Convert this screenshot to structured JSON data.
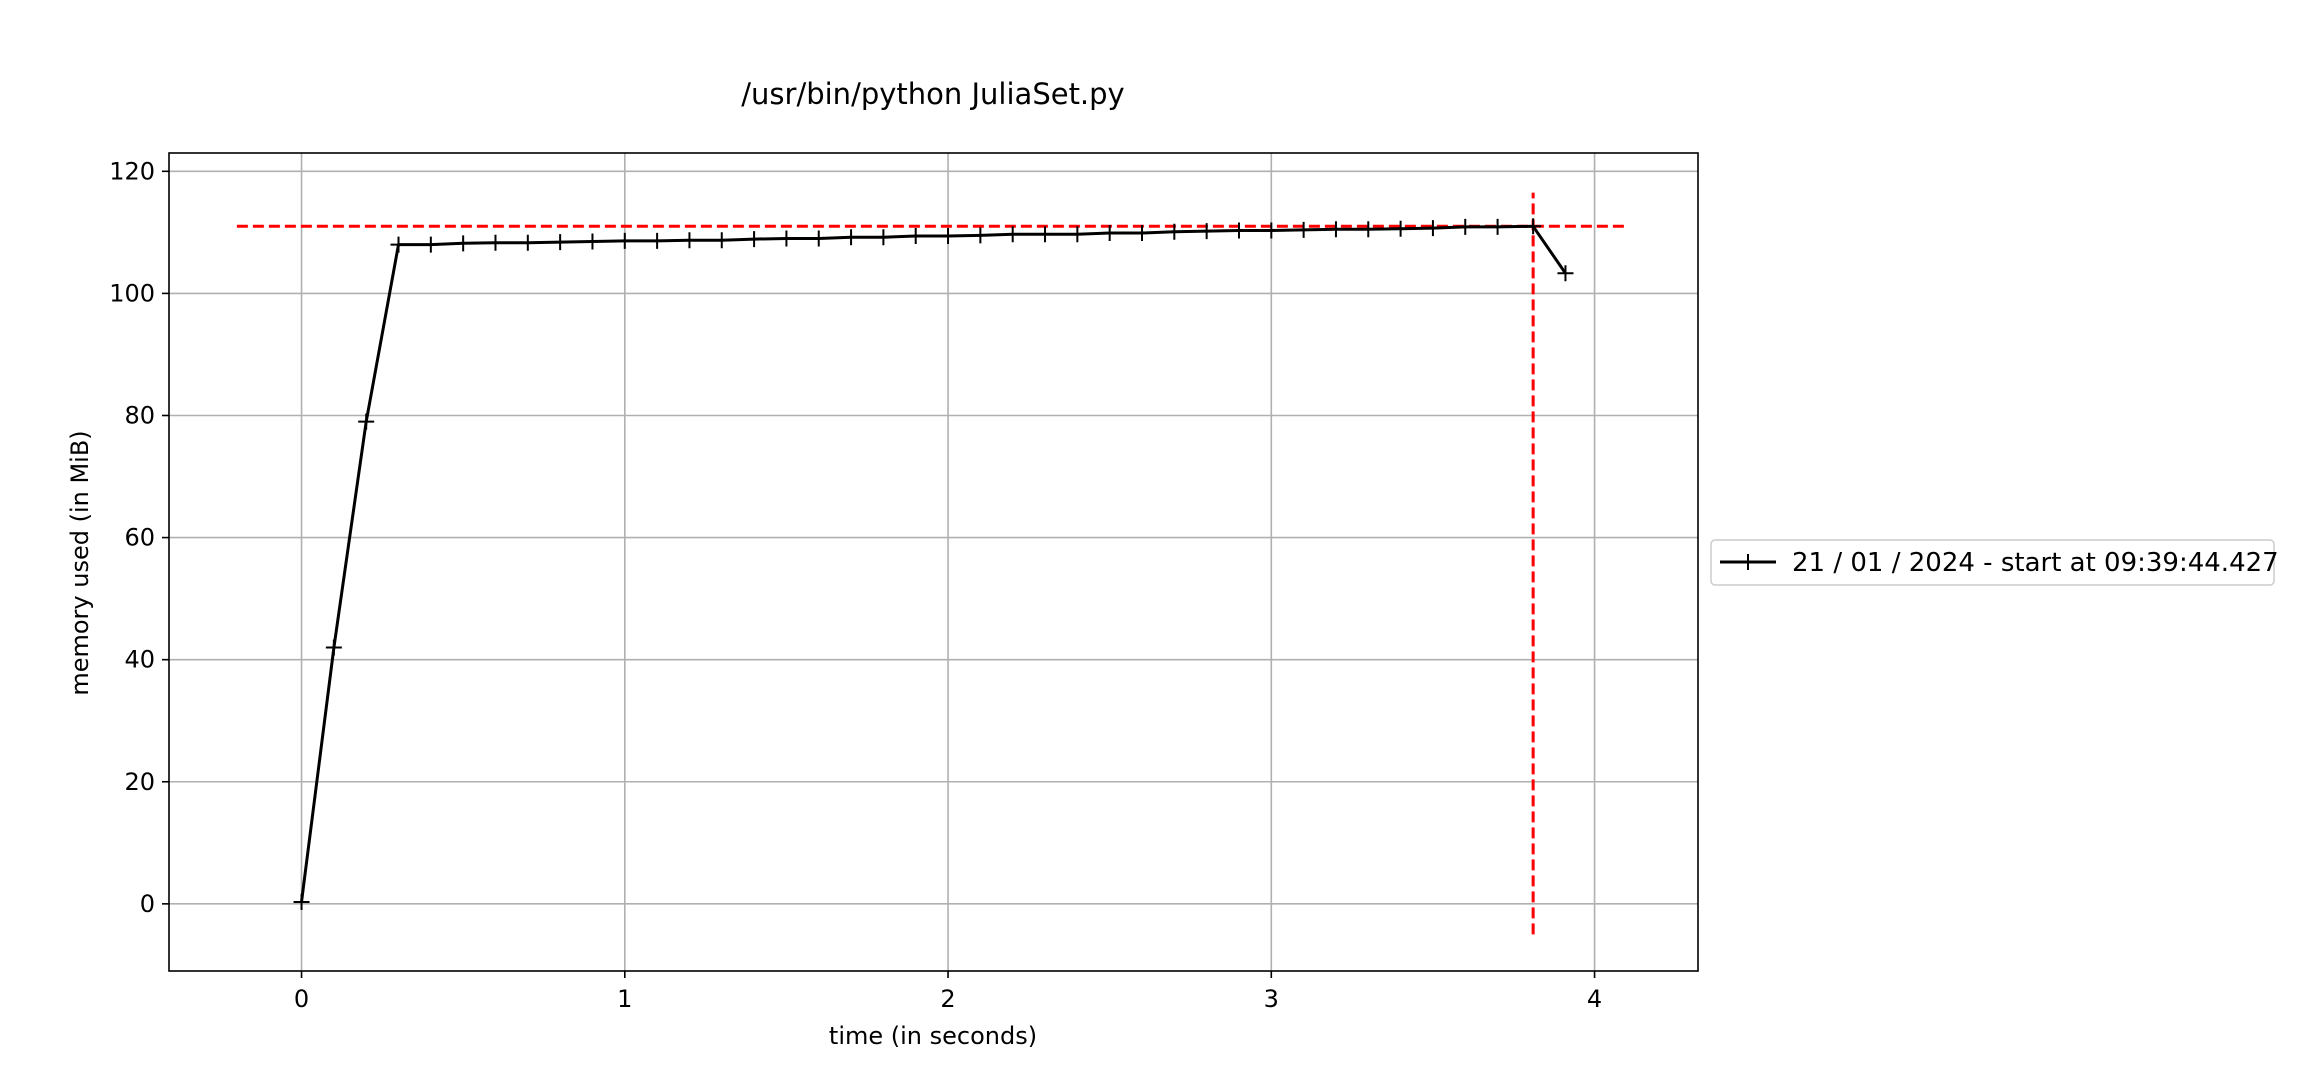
{
  "chart_data": {
    "type": "line",
    "title": "/usr/bin/python JuliaSet.py",
    "xlabel": "time (in seconds)",
    "ylabel": "memory used (in MiB)",
    "xlim": [
      -0.41,
      4.32
    ],
    "ylim": [
      -11,
      123
    ],
    "xticks": [
      0,
      1,
      2,
      3,
      4
    ],
    "yticks": [
      0,
      20,
      40,
      60,
      80,
      100,
      120
    ],
    "grid": true,
    "legend_position": "right",
    "series": [
      {
        "name": "21 / 01 / 2024 - start at 09:39:44.427",
        "color": "#000000",
        "marker": "+",
        "x": [
          0.0,
          0.1,
          0.2,
          0.3,
          0.4,
          0.5,
          0.6,
          0.7,
          0.8,
          0.9,
          1.0,
          1.1,
          1.2,
          1.3,
          1.4,
          1.5,
          1.6,
          1.7,
          1.8,
          1.9,
          2.0,
          2.1,
          2.2,
          2.3,
          2.4,
          2.5,
          2.6,
          2.7,
          2.8,
          2.9,
          3.0,
          3.1,
          3.2,
          3.3,
          3.4,
          3.5,
          3.6,
          3.7,
          3.81,
          3.91
        ],
        "y": [
          0.3,
          42.0,
          79.0,
          108.0,
          108.0,
          108.2,
          108.3,
          108.3,
          108.4,
          108.5,
          108.6,
          108.6,
          108.7,
          108.7,
          108.9,
          109.0,
          109.0,
          109.2,
          109.2,
          109.4,
          109.4,
          109.5,
          109.7,
          109.7,
          109.7,
          109.9,
          109.9,
          110.1,
          110.2,
          110.3,
          110.3,
          110.4,
          110.5,
          110.5,
          110.6,
          110.7,
          110.9,
          110.9,
          111.0,
          103.3
        ]
      }
    ],
    "reference_lines": [
      {
        "orientation": "horizontal",
        "value": 111.0,
        "from": -0.2,
        "to": 4.1,
        "color": "#ff0000",
        "style": "dashed"
      },
      {
        "orientation": "vertical",
        "value": 3.81,
        "from": -5,
        "to": 116.5,
        "color": "#ff0000",
        "style": "dashed"
      }
    ]
  }
}
